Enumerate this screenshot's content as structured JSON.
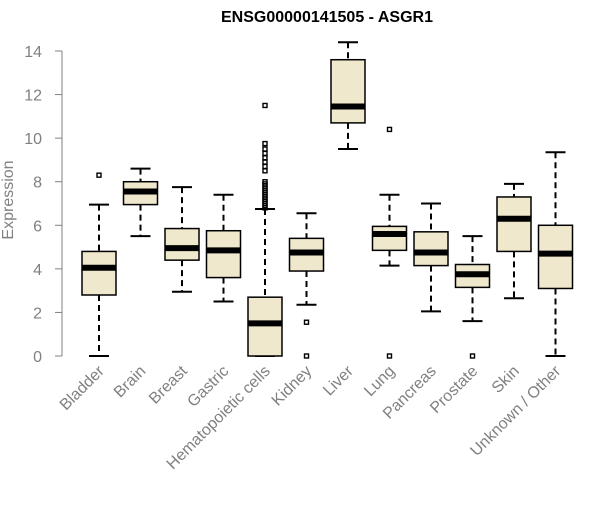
{
  "chart_data": {
    "type": "boxplot",
    "title": "ENSG00000141505 - ASGR1",
    "xlabel": "",
    "ylabel": "Expression",
    "ylim": [
      0,
      14
    ],
    "yticks": [
      0,
      2,
      4,
      6,
      8,
      10,
      12,
      14
    ],
    "box_fill": "#efe8cc",
    "series": [
      {
        "name": "Bladder",
        "min": 0.0,
        "q1": 2.8,
        "median": 4.05,
        "q3": 4.8,
        "max": 6.95,
        "outliers": [
          8.3
        ]
      },
      {
        "name": "Brain",
        "min": 5.5,
        "q1": 6.95,
        "median": 7.55,
        "q3": 8.0,
        "max": 8.6,
        "outliers": []
      },
      {
        "name": "Breast",
        "min": 2.95,
        "q1": 4.4,
        "median": 4.95,
        "q3": 5.85,
        "max": 7.75,
        "outliers": []
      },
      {
        "name": "Gastric",
        "min": 2.5,
        "q1": 3.6,
        "median": 4.85,
        "q3": 5.75,
        "max": 7.4,
        "outliers": []
      },
      {
        "name": "Hematopoietic cells",
        "min": 0.0,
        "q1": 0.0,
        "median": 1.5,
        "q3": 2.7,
        "max": 6.75,
        "outliers": [
          6.8,
          6.9,
          7.0,
          7.1,
          7.2,
          7.3,
          7.4,
          7.5,
          7.6,
          7.7,
          7.8,
          7.9,
          8.0,
          8.5,
          8.7,
          8.9,
          9.1,
          9.3,
          9.5,
          9.75,
          11.5
        ]
      },
      {
        "name": "Kidney",
        "min": 2.35,
        "q1": 3.9,
        "median": 4.75,
        "q3": 5.4,
        "max": 6.55,
        "outliers": [
          1.55,
          0.0
        ]
      },
      {
        "name": "Liver",
        "min": 9.5,
        "q1": 10.7,
        "median": 11.45,
        "q3": 13.6,
        "max": 14.4,
        "outliers": []
      },
      {
        "name": "Lung",
        "min": 4.15,
        "q1": 4.85,
        "median": 5.6,
        "q3": 5.95,
        "max": 7.4,
        "outliers": [
          10.4,
          0.0
        ]
      },
      {
        "name": "Pancreas",
        "min": 2.05,
        "q1": 4.15,
        "median": 4.75,
        "q3": 5.7,
        "max": 7.0,
        "outliers": []
      },
      {
        "name": "Prostate",
        "min": 1.6,
        "q1": 3.15,
        "median": 3.75,
        "q3": 4.2,
        "max": 5.5,
        "outliers": [
          0.0
        ]
      },
      {
        "name": "Skin",
        "min": 2.65,
        "q1": 4.8,
        "median": 6.3,
        "q3": 7.3,
        "max": 7.9,
        "outliers": []
      },
      {
        "name": "Unknown / Other",
        "min": 0.0,
        "q1": 3.1,
        "median": 4.7,
        "q3": 6.0,
        "max": 9.35,
        "outliers": []
      }
    ]
  }
}
